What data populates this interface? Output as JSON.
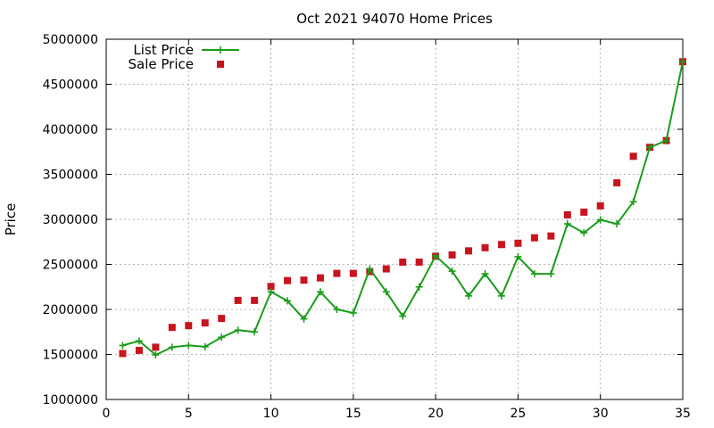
{
  "chart_data": {
    "type": "line",
    "title": "Oct 2021 94070 Home Prices",
    "xlabel": "",
    "ylabel": "Price",
    "xlim": [
      0,
      35
    ],
    "ylim": [
      1000000,
      5000000
    ],
    "x_ticks": [
      0,
      5,
      10,
      15,
      20,
      25,
      30,
      35
    ],
    "y_ticks": [
      1000000,
      1500000,
      2000000,
      2500000,
      3000000,
      3500000,
      4000000,
      4500000,
      5000000
    ],
    "grid": true,
    "legend_position": "top-left",
    "x": [
      1,
      2,
      3,
      4,
      5,
      6,
      7,
      8,
      9,
      10,
      11,
      12,
      13,
      14,
      15,
      16,
      17,
      18,
      19,
      20,
      21,
      22,
      23,
      24,
      25,
      26,
      27,
      28,
      29,
      30,
      31,
      32,
      33,
      34,
      35
    ],
    "series": [
      {
        "name": "List Price",
        "style": "line-plus",
        "color": "#1a9c1a",
        "values": [
          1600000,
          1650000,
          1495000,
          1580000,
          1600000,
          1585000,
          1690000,
          1770000,
          1750000,
          2195000,
          2095000,
          1895000,
          2195000,
          2000000,
          1960000,
          2450000,
          2195000,
          1925000,
          2250000,
          2595000,
          2425000,
          2150000,
          2395000,
          2150000,
          2585000,
          2395000,
          2395000,
          2950000,
          2850000,
          2995000,
          2950000,
          3195000,
          3800000,
          3875000,
          4750000
        ]
      },
      {
        "name": "Sale Price",
        "style": "square",
        "color": "#c8141e",
        "values": [
          1510000,
          1545000,
          1580000,
          1800000,
          1820000,
          1850000,
          1900000,
          2100000,
          2100000,
          2255000,
          2320000,
          2325000,
          2350000,
          2400000,
          2400000,
          2420000,
          2450000,
          2525000,
          2525000,
          2590000,
          2605000,
          2650000,
          2685000,
          2720000,
          2735000,
          2795000,
          2815000,
          3050000,
          3080000,
          3150000,
          3405000,
          3700000,
          3800000,
          3875000,
          4750000
        ]
      }
    ]
  }
}
